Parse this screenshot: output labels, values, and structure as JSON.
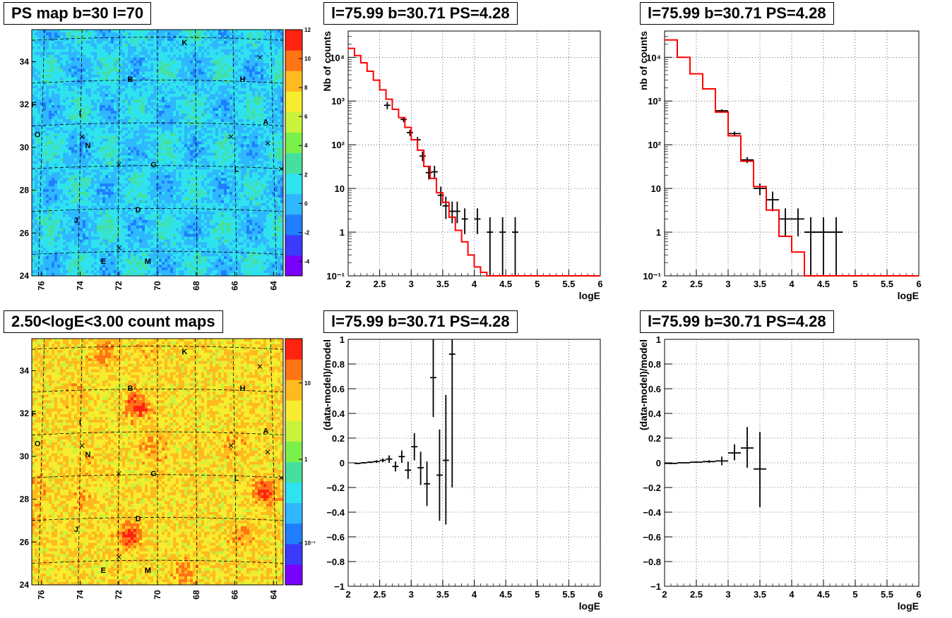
{
  "titles": {
    "ps_map": "PS map b=30 l=70",
    "count_map": "2.50<logE<3.00 count maps",
    "spectrum_left": "l=75.99 b=30.71 PS=4.28",
    "spectrum_right": "l=75.99 b=30.71 PS=4.28",
    "residual_left": "l=75.99 b=30.71 PS=4.28",
    "residual_right": "l=75.99 b=30.71 PS=4.28"
  },
  "maps": {
    "x_ticks": [
      "76",
      "74",
      "72",
      "70",
      "68",
      "66",
      "64"
    ],
    "y_ticks": [
      "24",
      "26",
      "28",
      "30",
      "32",
      "34"
    ],
    "source_labels": [
      "K",
      "B",
      "H",
      "F",
      "I",
      "A",
      "O",
      "N",
      "G",
      "L",
      "D",
      "J",
      "E",
      "M"
    ],
    "ps_colorbar_ticks": [
      "12",
      "10",
      "8",
      "6",
      "4",
      "2",
      "0",
      "-2",
      "-4"
    ],
    "count_colorbar_ticks": [
      "10",
      "1",
      "10⁻¹"
    ]
  },
  "chart_data": [
    {
      "type": "heatmap",
      "title": "PS map b=30 l=70",
      "xlim": [
        76.5,
        63.5
      ],
      "ylim": [
        24,
        35.5
      ],
      "colorbar_range": [
        -5,
        12
      ],
      "palette": [
        "#7a00ff",
        "#3b3bff",
        "#1f7fff",
        "#2fb7ff",
        "#2fe3ee",
        "#45e0a0",
        "#7cf04a",
        "#c8f23c",
        "#f7ec2e",
        "#ffba1f",
        "#ff7415",
        "#ff2310"
      ]
    },
    {
      "type": "line",
      "title": "l=75.99 b=30.71 PS=4.28",
      "xlabel": "logE",
      "ylabel": "Nb of counts",
      "xlim": [
        2,
        6
      ],
      "ylim": [
        0.1,
        40000
      ],
      "log_y": true,
      "grid": true,
      "xticks": [
        "2",
        "2.5",
        "3",
        "3.5",
        "4",
        "4.5",
        "5",
        "5.5",
        "6"
      ],
      "yticks": [
        "10⁻¹",
        "1",
        "10",
        "10²",
        "10³",
        "10⁴"
      ],
      "series": [
        {
          "style": "data",
          "x": [
            2.62,
            2.88,
            2.98,
            3.1,
            3.18,
            3.28,
            3.37,
            3.47,
            3.55,
            3.65,
            3.73,
            3.85,
            4.05,
            4.25,
            4.45,
            4.65
          ],
          "y": [
            800,
            380,
            190,
            130,
            55,
            23,
            24,
            7,
            4,
            3,
            3,
            2,
            2,
            1,
            1,
            1
          ],
          "xerr": [
            0.05,
            0.05,
            0.05,
            0.05,
            0.05,
            0.05,
            0.05,
            0.05,
            0.05,
            0.05,
            0.05,
            0.05,
            0.05,
            0.05,
            0.05,
            0.05
          ],
          "ylo": [
            650,
            330,
            160,
            110,
            42,
            16,
            17,
            4,
            2,
            1.6,
            1.6,
            0.9,
            0.9,
            0.1,
            0.1,
            0.1
          ],
          "yhi": [
            950,
            430,
            220,
            150,
            70,
            32,
            33,
            11,
            6.5,
            5,
            5,
            3.5,
            3.5,
            2.2,
            2.2,
            2.2
          ]
        },
        {
          "style": "model",
          "color": "#ff0000",
          "edges": [
            2.0,
            2.1,
            2.2,
            2.3,
            2.4,
            2.5,
            2.6,
            2.7,
            2.8,
            2.9,
            3.0,
            3.1,
            3.2,
            3.3,
            3.4,
            3.5,
            3.6,
            3.7,
            3.8,
            3.9,
            4.0,
            4.1,
            4.2,
            6.0
          ],
          "values": [
            16000,
            11000,
            7500,
            4800,
            3000,
            1800,
            1100,
            650,
            420,
            250,
            130,
            75,
            32,
            17,
            8,
            4.8,
            2.2,
            1.1,
            0.6,
            0.3,
            0.16,
            0.12,
            0.1
          ]
        }
      ]
    },
    {
      "type": "line",
      "title": "l=75.99 b=30.71 PS=4.28",
      "xlabel": "logE",
      "ylabel": "nb of counts",
      "xlim": [
        2,
        6
      ],
      "ylim": [
        0.1,
        40000
      ],
      "log_y": true,
      "grid": true,
      "xticks": [
        "2",
        "2.5",
        "3",
        "3.5",
        "4",
        "4.5",
        "5",
        "5.5",
        "6"
      ],
      "yticks": [
        "10⁻¹",
        "1",
        "10",
        "10²",
        "10³",
        "10⁴"
      ],
      "series": [
        {
          "style": "data",
          "x": [
            2.9,
            3.1,
            3.3,
            3.5,
            3.7,
            3.9,
            4.1,
            4.3,
            4.5,
            4.7
          ],
          "y": [
            600,
            180,
            45,
            10,
            5.5,
            2,
            2,
            1,
            1,
            1
          ],
          "xerr": [
            0.1,
            0.1,
            0.1,
            0.1,
            0.1,
            0.1,
            0.1,
            0.1,
            0.1,
            0.1
          ],
          "ylo": [
            550,
            160,
            38,
            7,
            3,
            0.8,
            0.8,
            0.1,
            0.1,
            0.1
          ],
          "yhi": [
            650,
            200,
            52,
            13,
            8.5,
            3.5,
            3.5,
            2.2,
            2.2,
            2.2
          ]
        },
        {
          "style": "model",
          "color": "#ff0000",
          "edges": [
            2.0,
            2.2,
            2.4,
            2.6,
            2.8,
            3.0,
            3.2,
            3.4,
            3.6,
            3.8,
            4.0,
            4.2,
            6.0
          ],
          "values": [
            25000,
            10000,
            4200,
            1900,
            560,
            160,
            42,
            11,
            3.2,
            0.8,
            0.35,
            0.1
          ]
        }
      ]
    },
    {
      "type": "heatmap",
      "title": "2.50<logE<3.00 count maps",
      "xlim": [
        76.5,
        63.5
      ],
      "ylim": [
        24,
        35.5
      ],
      "colorbar_log": true,
      "palette": [
        "#7a00ff",
        "#3b3bff",
        "#1f7fff",
        "#2fb7ff",
        "#2fe3ee",
        "#45e0a0",
        "#7cf04a",
        "#c8f23c",
        "#f7ec2e",
        "#ffba1f",
        "#ff7415",
        "#ff2310"
      ]
    },
    {
      "type": "scatter",
      "title": "l=75.99 b=30.71 PS=4.28",
      "xlabel": "logE",
      "ylabel": "(data-model)/model",
      "xlim": [
        2,
        6
      ],
      "ylim": [
        -1,
        1
      ],
      "grid": true,
      "xticks": [
        "2",
        "2.5",
        "3",
        "3.5",
        "4",
        "4.5",
        "5",
        "5.5",
        "6"
      ],
      "yticks": [
        "−1",
        "−0.8",
        "−0.6",
        "−0.4",
        "−0.2",
        "0",
        "0.2",
        "0.4",
        "0.6",
        "0.8",
        "1"
      ],
      "series": [
        {
          "style": "data",
          "x": [
            2.15,
            2.25,
            2.35,
            2.45,
            2.55,
            2.65,
            2.75,
            2.85,
            2.95,
            3.05,
            3.15,
            3.25,
            3.35,
            3.45,
            3.55,
            3.65
          ],
          "y": [
            -0.005,
            0.0,
            0.005,
            0.01,
            0.02,
            0.03,
            -0.03,
            0.05,
            -0.06,
            0.13,
            -0.04,
            -0.17,
            0.69,
            -0.1,
            0.02,
            0.88
          ],
          "xerr": [
            0.05,
            0.05,
            0.05,
            0.05,
            0.05,
            0.05,
            0.05,
            0.05,
            0.05,
            0.05,
            0.05,
            0.05,
            0.05,
            0.05,
            0.05,
            0.05
          ],
          "ylo": [
            -0.01,
            -0.005,
            -0.002,
            0.0,
            0.005,
            0.0,
            -0.07,
            0.0,
            -0.13,
            0.02,
            -0.18,
            -0.35,
            0.37,
            -0.47,
            -0.5,
            -0.2
          ],
          "yhi": [
            0.0,
            0.005,
            0.01,
            0.02,
            0.035,
            0.06,
            0.01,
            0.1,
            0.01,
            0.24,
            0.09,
            0.01,
            1.0,
            0.27,
            0.55,
            1.0
          ]
        }
      ]
    },
    {
      "type": "scatter",
      "title": "l=75.99 b=30.71 PS=4.28",
      "xlabel": "logE",
      "ylabel": "(data-model)/model",
      "xlim": [
        2,
        6
      ],
      "ylim": [
        -1,
        1
      ],
      "grid": true,
      "xticks": [
        "2",
        "2.5",
        "3",
        "3.5",
        "4",
        "4.5",
        "5",
        "5.5",
        "6"
      ],
      "yticks": [
        "−1",
        "−0.8",
        "−0.6",
        "−0.4",
        "−0.2",
        "0",
        "0.2",
        "0.4",
        "0.6",
        "0.8",
        "1"
      ],
      "series": [
        {
          "style": "data",
          "x": [
            2.1,
            2.3,
            2.5,
            2.7,
            2.9,
            3.1,
            3.3,
            3.5
          ],
          "y": [
            -0.005,
            0.0,
            0.005,
            0.01,
            0.015,
            0.08,
            0.12,
            -0.05
          ],
          "xerr": [
            0.1,
            0.1,
            0.1,
            0.1,
            0.1,
            0.1,
            0.1,
            0.1
          ],
          "ylo": [
            -0.01,
            -0.004,
            0.0,
            0.0,
            -0.02,
            0.02,
            -0.04,
            -0.36
          ],
          "yhi": [
            0.0,
            0.004,
            0.01,
            0.02,
            0.05,
            0.15,
            0.29,
            0.25
          ]
        }
      ]
    }
  ]
}
